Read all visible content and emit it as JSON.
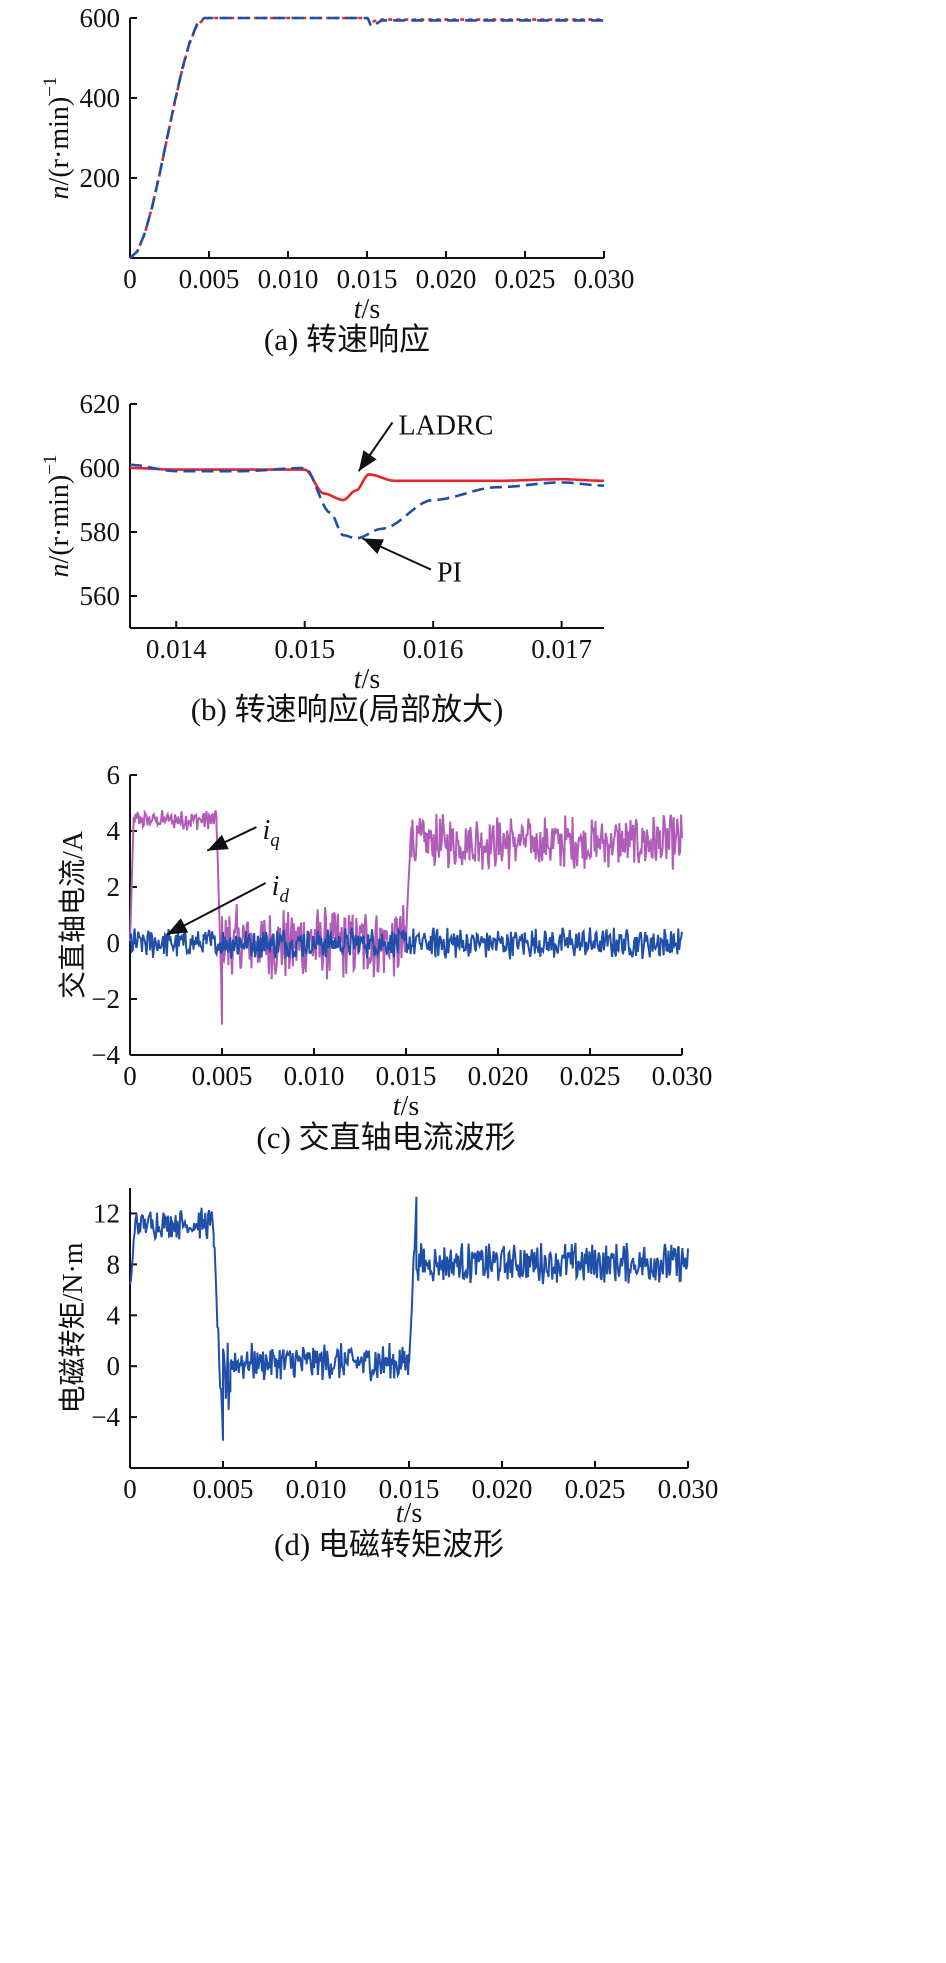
{
  "chart_data": [
    {
      "type": "line",
      "caption": "(a) 转速响应",
      "xlabel_italic": "t",
      "xlabel_rest": "/s",
      "ylabel_italic": "n",
      "ylabel_rest": "/(r·min)",
      "ylabel_sup": "−1",
      "xlim": [
        0,
        0.03
      ],
      "ylim": [
        0,
        600
      ],
      "xticks": [
        0,
        0.005,
        0.01,
        0.015,
        0.02,
        0.025,
        0.03
      ],
      "xtick_labels": [
        "0",
        "0.005",
        "0.010",
        "0.015",
        "0.020",
        "0.025",
        "0.030"
      ],
      "yticks": [
        200,
        400,
        600
      ],
      "ytick_labels": [
        "200",
        "400",
        "600"
      ],
      "series": [
        {
          "color": "#e8262a",
          "dash": "4,4",
          "x": [
            0,
            0.0047,
            0.005,
            0.015,
            0.0152,
            0.016,
            0.03
          ],
          "y": [
            0,
            598,
            600,
            600,
            591,
            596,
            596
          ]
        },
        {
          "color": "#1f4fa8",
          "dash": "12,6",
          "x": [
            0,
            0.0047,
            0.005,
            0.015,
            0.0153,
            0.016,
            0.03
          ],
          "y": [
            0,
            600,
            600,
            600,
            580,
            594,
            594
          ]
        }
      ]
    },
    {
      "type": "line",
      "caption": "(b) 转速响应(局部放大)",
      "xlabel_italic": "t",
      "xlabel_rest": "/s",
      "ylabel_italic": "n",
      "ylabel_rest": "/(r·min)",
      "ylabel_sup": "−1",
      "xlim": [
        0.01364,
        0.01733
      ],
      "ylim": [
        550,
        620
      ],
      "xticks": [
        0.014,
        0.015,
        0.016,
        0.017
      ],
      "xtick_labels": [
        "0.014",
        "0.015",
        "0.016",
        "0.017"
      ],
      "yticks": [
        560,
        580,
        600,
        620
      ],
      "ytick_labels": [
        "560",
        "580",
        "600",
        "620"
      ],
      "series": [
        {
          "name": "LADRC",
          "color": "#e8262a",
          "dash": "",
          "x": [
            0.01364,
            0.014,
            0.0145,
            0.015,
            0.01515,
            0.0153,
            0.0154,
            0.0155,
            0.0157,
            0.016,
            0.0165,
            0.017,
            0.01733
          ],
          "y": [
            600,
            599.5,
            599.5,
            599.5,
            592,
            590,
            593,
            598,
            596,
            596,
            596,
            596.5,
            596
          ]
        },
        {
          "name": "PI",
          "color": "#1f4fa8",
          "dash": "12,6",
          "x": [
            0.01364,
            0.014,
            0.0145,
            0.015,
            0.0152,
            0.0153,
            0.0154,
            0.0156,
            0.016,
            0.0165,
            0.017,
            0.01733
          ],
          "y": [
            601,
            599,
            599,
            600,
            586,
            579,
            578,
            581,
            590,
            594,
            595.5,
            594.5
          ]
        }
      ],
      "annotations": [
        {
          "text": "LADRC",
          "text_x": 0.01573,
          "text_y": 613,
          "tip_x": 0.01542,
          "tip_y": 599
        },
        {
          "text": "PI",
          "text_x": 0.01603,
          "text_y": 567,
          "tip_x": 0.01545,
          "tip_y": 578
        }
      ]
    },
    {
      "type": "line",
      "caption": "(c) 交直轴电流波形",
      "ylabel": "交直轴电流/A",
      "xlabel_italic": "t",
      "xlabel_rest": "/s",
      "xlim": [
        0,
        0.03
      ],
      "ylim": [
        -4,
        6
      ],
      "xticks": [
        0,
        0.005,
        0.01,
        0.015,
        0.02,
        0.025,
        0.03
      ],
      "xtick_labels": [
        "0",
        "0.005",
        "0.010",
        "0.015",
        "0.020",
        "0.025",
        "0.030"
      ],
      "yticks": [
        -4,
        -2,
        0,
        2,
        4,
        6
      ],
      "ytick_labels": [
        "−4",
        "−2",
        "0",
        "2",
        "4",
        "6"
      ],
      "series": [
        {
          "name": "iq",
          "label_main": "i",
          "label_sub": "q",
          "color": "#b05cb8",
          "segments": [
            {
              "x0": 0.0,
              "x1": 0.0002,
              "base": 0,
              "amp": 0.2,
              "ramp_to": 4.4
            },
            {
              "x0": 0.0002,
              "x1": 0.0047,
              "base": 4.4,
              "amp": 0.3
            },
            {
              "x0": 0.0047,
              "x1": 0.005,
              "base": 4.4,
              "amp": 0.4,
              "ramp_to": -2.5
            },
            {
              "x0": 0.005,
              "x1": 0.015,
              "base": 0,
              "amp": 1.1
            },
            {
              "x0": 0.015,
              "x1": 0.0153,
              "base": 0,
              "amp": 0.4,
              "ramp_to": 4.6
            },
            {
              "x0": 0.0153,
              "x1": 0.03,
              "base": 3.6,
              "amp": 0.8
            }
          ]
        },
        {
          "name": "id",
          "label_main": "i",
          "label_sub": "d",
          "color": "#1f4fa8",
          "segments": [
            {
              "x0": 0.0,
              "x1": 0.03,
              "base": 0,
              "amp": 0.45
            }
          ]
        }
      ],
      "annotations": [
        {
          "series": "iq",
          "text_x": 0.0072,
          "text_y": 4.0,
          "tip_x": 0.0042,
          "tip_y": 3.3
        },
        {
          "series": "id",
          "text_x": 0.0077,
          "text_y": 2.0,
          "tip_x": 0.002,
          "tip_y": 0.3
        }
      ]
    },
    {
      "type": "line",
      "caption": "(d) 电磁转矩波形",
      "ylabel": "电磁转矩/N·m",
      "xlabel_italic": "t",
      "xlabel_rest": "/s",
      "xlim": [
        0,
        0.03
      ],
      "ylim": [
        -8,
        14
      ],
      "xticks": [
        0,
        0.005,
        0.01,
        0.015,
        0.02,
        0.025,
        0.03
      ],
      "xtick_labels": [
        "0",
        "0.005",
        "0.010",
        "0.015",
        "0.020",
        "0.025",
        "0.030"
      ],
      "yticks": [
        -4,
        0,
        4,
        8,
        12
      ],
      "ytick_labels": [
        "−4",
        "0",
        "4",
        "8",
        "12"
      ],
      "series": [
        {
          "color": "#1f4fa8",
          "segments": [
            {
              "x0": 0.0,
              "x1": 0.0003,
              "base": 6,
              "amp": 0.5,
              "ramp_to": 11.5
            },
            {
              "x0": 0.0003,
              "x1": 0.0045,
              "base": 11.2,
              "amp": 1.0
            },
            {
              "x0": 0.0045,
              "x1": 0.005,
              "base": 10,
              "amp": 0.8,
              "ramp_to": -6
            },
            {
              "x0": 0.005,
              "x1": 0.0054,
              "base": -1,
              "amp": 2.5
            },
            {
              "x0": 0.0054,
              "x1": 0.015,
              "base": 0.3,
              "amp": 1.2
            },
            {
              "x0": 0.015,
              "x1": 0.0154,
              "base": 0.3,
              "amp": 0.5,
              "ramp_to": 12.8
            },
            {
              "x0": 0.0154,
              "x1": 0.03,
              "base": 8.1,
              "amp": 1.3
            }
          ]
        }
      ]
    }
  ]
}
